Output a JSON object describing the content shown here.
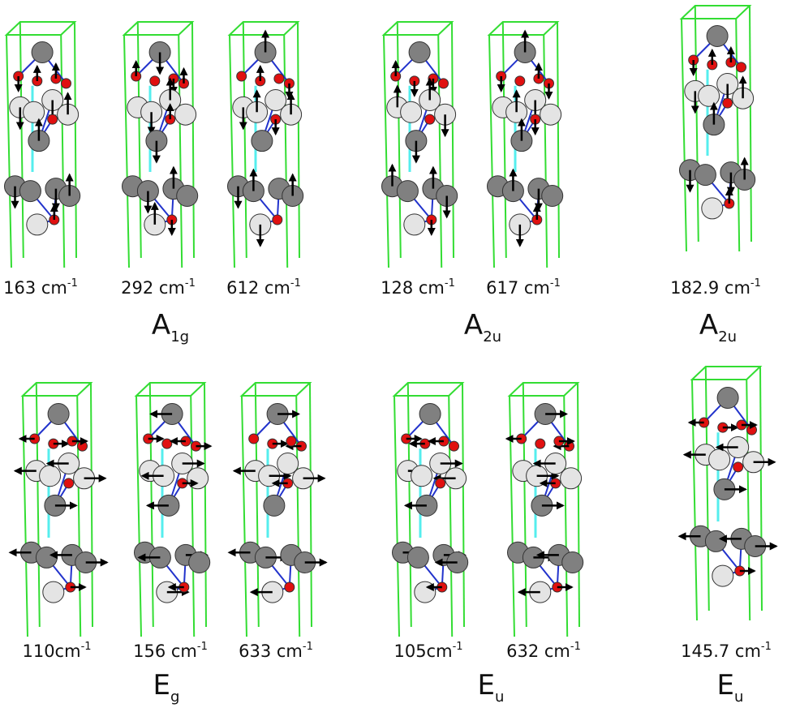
{
  "groups": [
    {
      "modes": [
        {
          "text": "163 cm",
          "sup": "-1"
        },
        {
          "text": "292 cm",
          "sup": "-1"
        },
        {
          "text": "612 cm",
          "sup": "-1"
        }
      ],
      "symmetry": {
        "main": "A",
        "sub": "1g"
      }
    },
    {
      "modes": [
        {
          "text": "128 cm",
          "sup": "-1"
        },
        {
          "text": "617 cm",
          "sup": "-1"
        }
      ],
      "symmetry": {
        "main": "A",
        "sub": "2u"
      }
    },
    {
      "modes": [
        {
          "text": "182.9 cm",
          "sup": "-1"
        }
      ],
      "symmetry": {
        "main": "A",
        "sub": "2u"
      }
    },
    {
      "modes": [
        {
          "text": "110cm",
          "sup": "-1"
        },
        {
          "text": "156 cm",
          "sup": "-1"
        },
        {
          "text": "633 cm",
          "sup": "-1"
        }
      ],
      "symmetry": {
        "main": "E",
        "sub": "g"
      }
    },
    {
      "modes": [
        {
          "text": "105cm",
          "sup": "-1"
        },
        {
          "text": "632 cm",
          "sup": "-1"
        }
      ],
      "symmetry": {
        "main": "E",
        "sub": "u"
      }
    },
    {
      "modes": [
        {
          "text": "145.7 cm",
          "sup": "-1"
        }
      ],
      "symmetry": {
        "main": "E",
        "sub": "u"
      }
    }
  ]
}
